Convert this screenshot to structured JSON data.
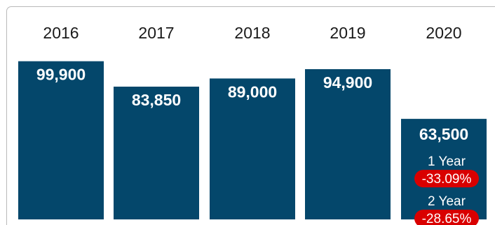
{
  "chart_data": {
    "type": "bar",
    "title": "",
    "xlabel": "",
    "ylabel": "",
    "categories": [
      "2016",
      "2017",
      "2018",
      "2019",
      "2020"
    ],
    "values": [
      99900,
      83850,
      89000,
      94900,
      63500
    ],
    "value_labels": [
      "99,900",
      "83,850",
      "89,000",
      "94,900",
      "63,500"
    ],
    "ylim": [
      0,
      100000
    ],
    "grid": false,
    "bar_color": "#04476b",
    "changes": [
      {
        "label": "1 Year",
        "value": "-33.09%"
      },
      {
        "label": "2 Year",
        "value": "-28.65%"
      }
    ],
    "change_badge_color": "#d90000"
  }
}
